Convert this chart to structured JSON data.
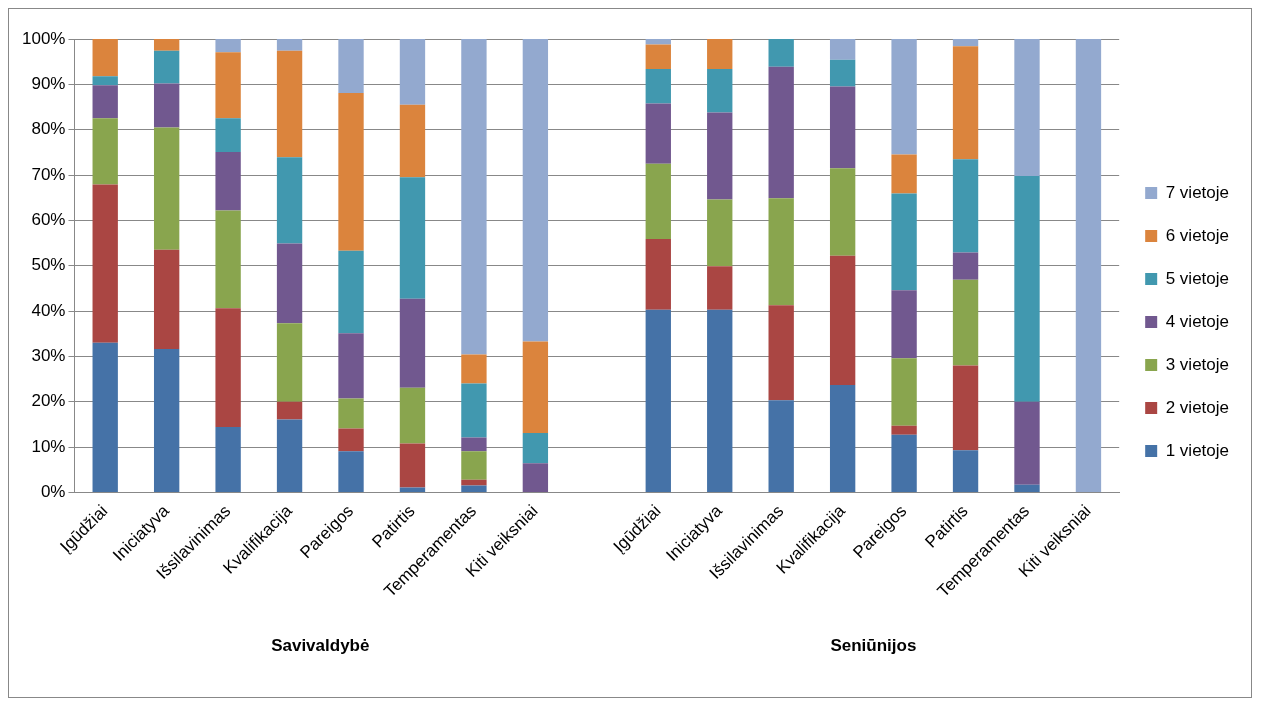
{
  "chart_data": {
    "type": "bar",
    "stacked": true,
    "categories": [
      "Įgūdžiai",
      "Iniciatyva",
      "Išsilavinimas",
      "Kvalifikacija",
      "Pareigos",
      "Patirtis",
      "Temperamentas",
      "Kiti veiksniai",
      null,
      "Įgūdžiai",
      "Iniciatyva",
      "Išsilavinimas",
      "Kvalifikacija",
      "Pareigos",
      "Patirtis",
      "Temperamentas",
      "Kiti veiksniai"
    ],
    "series": [
      {
        "name": "1 vietoje",
        "color": "#4572a7",
        "values": [
          33.0,
          31.6,
          14.4,
          16.1,
          9.1,
          1.1,
          1.5,
          0,
          null,
          40.3,
          40.3,
          20.3,
          23.7,
          12.7,
          9.3,
          1.7,
          0
        ]
      },
      {
        "name": "2 vietoje",
        "color": "#aa4643",
        "values": [
          34.9,
          21.9,
          26.2,
          3.9,
          5.0,
          9.7,
          1.3,
          0,
          null,
          15.6,
          9.6,
          21.0,
          28.5,
          2.0,
          18.7,
          0,
          0
        ]
      },
      {
        "name": "3 vietoje",
        "color": "#89a54e",
        "values": [
          14.6,
          27.0,
          21.6,
          17.3,
          6.6,
          12.3,
          6.3,
          0,
          null,
          16.6,
          14.7,
          23.6,
          19.3,
          14.9,
          18.9,
          0,
          0
        ]
      },
      {
        "name": "4 vietoje",
        "color": "#71588f",
        "values": [
          7.3,
          9.7,
          12.9,
          17.6,
          14.4,
          19.6,
          3.0,
          6.4,
          null,
          13.3,
          19.2,
          29.0,
          18.0,
          15.0,
          6.0,
          18.3,
          0
        ]
      },
      {
        "name": "5 vietoje",
        "color": "#4198af",
        "values": [
          2.0,
          7.2,
          7.4,
          19.0,
          18.2,
          26.8,
          11.9,
          6.7,
          null,
          7.6,
          9.6,
          6.1,
          5.9,
          21.3,
          20.6,
          49.8,
          0
        ]
      },
      {
        "name": "6 vietoje",
        "color": "#db843d",
        "values": [
          8.2,
          2.6,
          14.6,
          23.5,
          34.8,
          16.0,
          6.4,
          20.2,
          null,
          5.4,
          6.6,
          0,
          0,
          8.6,
          24.9,
          0,
          0
        ]
      },
      {
        "name": "7 vietoje",
        "color": "#93a9cf",
        "values": [
          0,
          0,
          2.9,
          2.6,
          11.9,
          14.5,
          69.6,
          66.7,
          null,
          1.2,
          0,
          0,
          4.6,
          25.5,
          1.6,
          30.2,
          100
        ]
      }
    ],
    "ylim": [
      0,
      100
    ],
    "yticks": [
      {
        "value": 0,
        "label": "0%"
      },
      {
        "value": 10,
        "label": "10%"
      },
      {
        "value": 20,
        "label": "20%"
      },
      {
        "value": 30,
        "label": "30%"
      },
      {
        "value": 40,
        "label": "40%"
      },
      {
        "value": 50,
        "label": "50%"
      },
      {
        "value": 60,
        "label": "60%"
      },
      {
        "value": 70,
        "label": "70%"
      },
      {
        "value": 80,
        "label": "80%"
      },
      {
        "value": 90,
        "label": "90%"
      },
      {
        "value": 100,
        "label": "100%"
      }
    ],
    "grid": "y",
    "legend": "right",
    "annotations": [
      "Savivaldybė",
      "Seniūnijos"
    ]
  }
}
